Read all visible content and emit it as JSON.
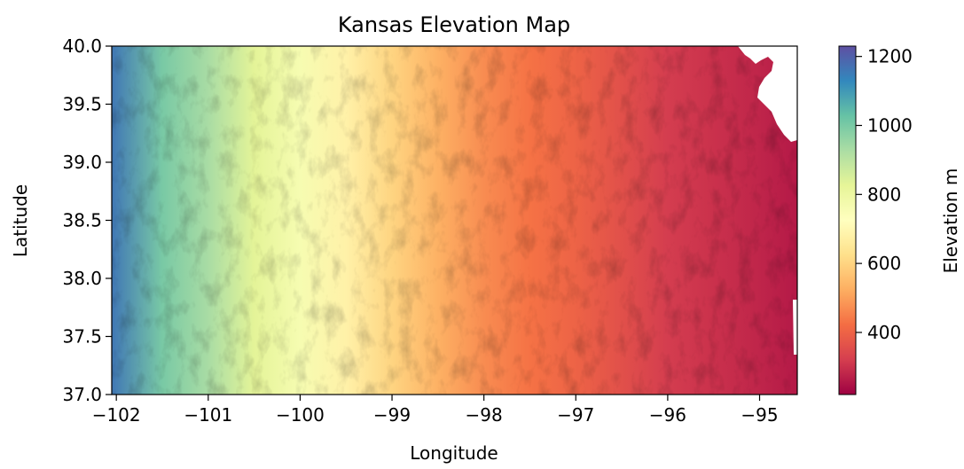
{
  "title": "Kansas Elevation Map",
  "chart_data": {
    "type": "heatmap",
    "title": "Kansas Elevation Map",
    "xlabel": "Longitude",
    "ylabel": "Latitude",
    "xlim": [
      -102.05,
      -94.59
    ],
    "ylim": [
      37.0,
      40.0
    ],
    "x_ticks": [
      -102,
      -101,
      -100,
      -99,
      -98,
      -97,
      -96,
      -95
    ],
    "x_tick_labels": [
      "−102",
      "−101",
      "−100",
      "−99",
      "−98",
      "−97",
      "−96",
      "−95"
    ],
    "y_ticks": [
      37.0,
      37.5,
      38.0,
      38.5,
      39.0,
      39.5,
      40.0
    ],
    "y_tick_labels": [
      "37.0",
      "37.5",
      "38.0",
      "38.5",
      "39.0",
      "39.5",
      "40.0"
    ],
    "colormap": "Spectral",
    "value_range": [
      220,
      1230
    ],
    "colorbar": {
      "label": "Elevation m",
      "ticks": [
        400,
        600,
        800,
        1000,
        1200
      ],
      "tick_labels": [
        "400",
        "600",
        "800",
        "1000",
        "1200"
      ],
      "colors": [
        "#9e0142",
        "#d53e4f",
        "#f46d43",
        "#fdae61",
        "#fee08b",
        "#ffffbf",
        "#e6f598",
        "#abdda4",
        "#66c2a5",
        "#3288bd",
        "#5e4fa2"
      ]
    },
    "elevation_profile": {
      "longitude": [
        -102.05,
        -101.5,
        -101.0,
        -100.5,
        -100.0,
        -99.5,
        -99.0,
        -98.5,
        -98.0,
        -97.5,
        -97.0,
        -96.5,
        -96.0,
        -95.5,
        -95.0,
        -94.59
      ],
      "elevation": [
        1160,
        1000,
        930,
        830,
        760,
        680,
        600,
        530,
        470,
        430,
        400,
        360,
        320,
        300,
        280,
        260
      ]
    },
    "no_data_region": "northeast corner (Missouri River border)"
  }
}
